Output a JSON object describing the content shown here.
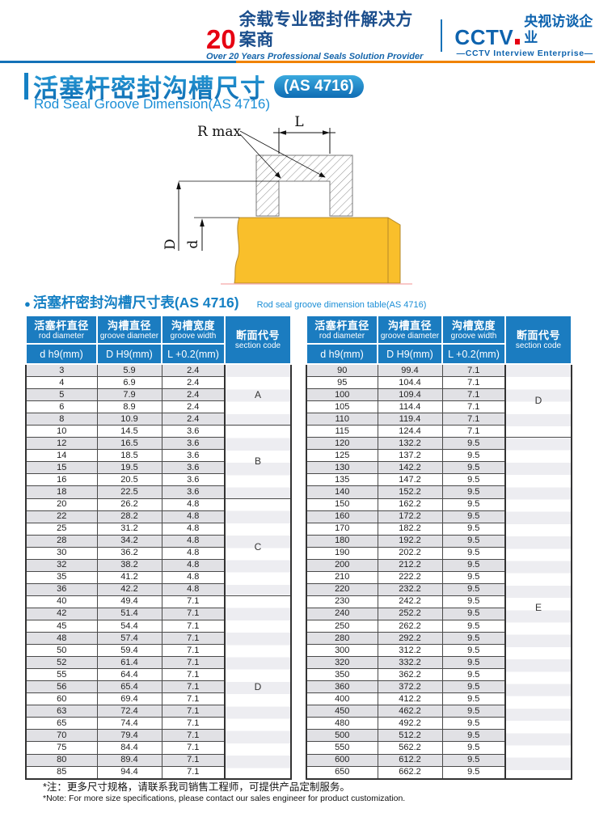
{
  "brand": {
    "years": "20",
    "tagline_cn": "余载专业密封件解决方案商",
    "tagline_en": "Over 20 Years Professional Seals Solution Provider",
    "cctv": "CCTV",
    "cctv_cn": "央视访谈企业",
    "cctv_en": "—CCTV Interview Enterprise—"
  },
  "title": {
    "cn": "活塞杆密封沟槽尺寸",
    "badge": "(AS 4716)",
    "en": "Rod Seal Groove Dimension(AS 4716)"
  },
  "diagram": {
    "labels": {
      "r_max": "R max",
      "l": "L",
      "d_upper": "D",
      "d_lower": "d"
    },
    "rod_color": "#f9bf2b"
  },
  "section": {
    "bullet": "●",
    "cn": "活塞杆密封沟槽尺寸表(AS 4716)",
    "en": "Rod seal groove dimension table(AS 4716)"
  },
  "table_headers": {
    "col1_cn": "活塞杆直径",
    "col1_en": "rod diameter",
    "col2_cn": "沟槽直径",
    "col2_en": "groove diameter",
    "col3_cn": "沟槽宽度",
    "col3_en": "groove width",
    "col4_cn": "断面代号",
    "col4_en": "section code",
    "sub1": "d h9(mm)",
    "sub2": "D H9(mm)",
    "sub3": "L +0.2(mm)"
  },
  "left_table": {
    "rows": [
      [
        "3",
        "5.9",
        "2.4"
      ],
      [
        "4",
        "6.9",
        "2.4"
      ],
      [
        "5",
        "7.9",
        "2.4"
      ],
      [
        "6",
        "8.9",
        "2.4"
      ],
      [
        "8",
        "10.9",
        "2.4"
      ],
      [
        "10",
        "14.5",
        "3.6"
      ],
      [
        "12",
        "16.5",
        "3.6"
      ],
      [
        "14",
        "18.5",
        "3.6"
      ],
      [
        "15",
        "19.5",
        "3.6"
      ],
      [
        "16",
        "20.5",
        "3.6"
      ],
      [
        "18",
        "22.5",
        "3.6"
      ],
      [
        "20",
        "26.2",
        "4.8"
      ],
      [
        "22",
        "28.2",
        "4.8"
      ],
      [
        "25",
        "31.2",
        "4.8"
      ],
      [
        "28",
        "34.2",
        "4.8"
      ],
      [
        "30",
        "36.2",
        "4.8"
      ],
      [
        "32",
        "38.2",
        "4.8"
      ],
      [
        "35",
        "41.2",
        "4.8"
      ],
      [
        "36",
        "42.2",
        "4.8"
      ],
      [
        "40",
        "49.4",
        "7.1"
      ],
      [
        "42",
        "51.4",
        "7.1"
      ],
      [
        "45",
        "54.4",
        "7.1"
      ],
      [
        "48",
        "57.4",
        "7.1"
      ],
      [
        "50",
        "59.4",
        "7.1"
      ],
      [
        "52",
        "61.4",
        "7.1"
      ],
      [
        "55",
        "64.4",
        "7.1"
      ],
      [
        "56",
        "65.4",
        "7.1"
      ],
      [
        "60",
        "69.4",
        "7.1"
      ],
      [
        "63",
        "72.4",
        "7.1"
      ],
      [
        "65",
        "74.4",
        "7.1"
      ],
      [
        "70",
        "79.4",
        "7.1"
      ],
      [
        "75",
        "84.4",
        "7.1"
      ],
      [
        "80",
        "89.4",
        "7.1"
      ],
      [
        "85",
        "94.4",
        "7.1"
      ]
    ],
    "groups": [
      {
        "code": "A",
        "start": 0,
        "count": 5
      },
      {
        "code": "B",
        "start": 5,
        "count": 6
      },
      {
        "code": "C",
        "start": 11,
        "count": 8
      },
      {
        "code": "D",
        "start": 19,
        "count": 15
      }
    ]
  },
  "right_table": {
    "rows": [
      [
        "90",
        "99.4",
        "7.1"
      ],
      [
        "95",
        "104.4",
        "7.1"
      ],
      [
        "100",
        "109.4",
        "7.1"
      ],
      [
        "105",
        "114.4",
        "7.1"
      ],
      [
        "110",
        "119.4",
        "7.1"
      ],
      [
        "115",
        "124.4",
        "7.1"
      ],
      [
        "120",
        "132.2",
        "9.5"
      ],
      [
        "125",
        "137.2",
        "9.5"
      ],
      [
        "130",
        "142.2",
        "9.5"
      ],
      [
        "135",
        "147.2",
        "9.5"
      ],
      [
        "140",
        "152.2",
        "9.5"
      ],
      [
        "150",
        "162.2",
        "9.5"
      ],
      [
        "160",
        "172.2",
        "9.5"
      ],
      [
        "170",
        "182.2",
        "9.5"
      ],
      [
        "180",
        "192.2",
        "9.5"
      ],
      [
        "190",
        "202.2",
        "9.5"
      ],
      [
        "200",
        "212.2",
        "9.5"
      ],
      [
        "210",
        "222.2",
        "9.5"
      ],
      [
        "220",
        "232.2",
        "9.5"
      ],
      [
        "230",
        "242.2",
        "9.5"
      ],
      [
        "240",
        "252.2",
        "9.5"
      ],
      [
        "250",
        "262.2",
        "9.5"
      ],
      [
        "280",
        "292.2",
        "9.5"
      ],
      [
        "300",
        "312.2",
        "9.5"
      ],
      [
        "320",
        "332.2",
        "9.5"
      ],
      [
        "350",
        "362.2",
        "9.5"
      ],
      [
        "360",
        "372.2",
        "9.5"
      ],
      [
        "400",
        "412.2",
        "9.5"
      ],
      [
        "450",
        "462.2",
        "9.5"
      ],
      [
        "480",
        "492.2",
        "9.5"
      ],
      [
        "500",
        "512.2",
        "9.5"
      ],
      [
        "550",
        "562.2",
        "9.5"
      ],
      [
        "600",
        "612.2",
        "9.5"
      ],
      [
        "650",
        "662.2",
        "9.5"
      ]
    ],
    "groups": [
      {
        "code": "D",
        "start": 0,
        "count": 6
      },
      {
        "code": "E",
        "start": 6,
        "count": 28
      }
    ]
  },
  "notes": {
    "cn": "*注：更多尺寸规格，请联系我司销售工程师，可提供产品定制服务。",
    "en": "*Note: For more size specifications, please contact our sales engineer for product customization."
  },
  "colors": {
    "brand_blue": "#1472b8",
    "brand_red": "#e60012",
    "separator_orange": "#f08300",
    "table_header_blue": "#1b7cc0",
    "row_stripe_gray": "#e1e1e5",
    "rod_yellow": "#f9bf2b"
  }
}
